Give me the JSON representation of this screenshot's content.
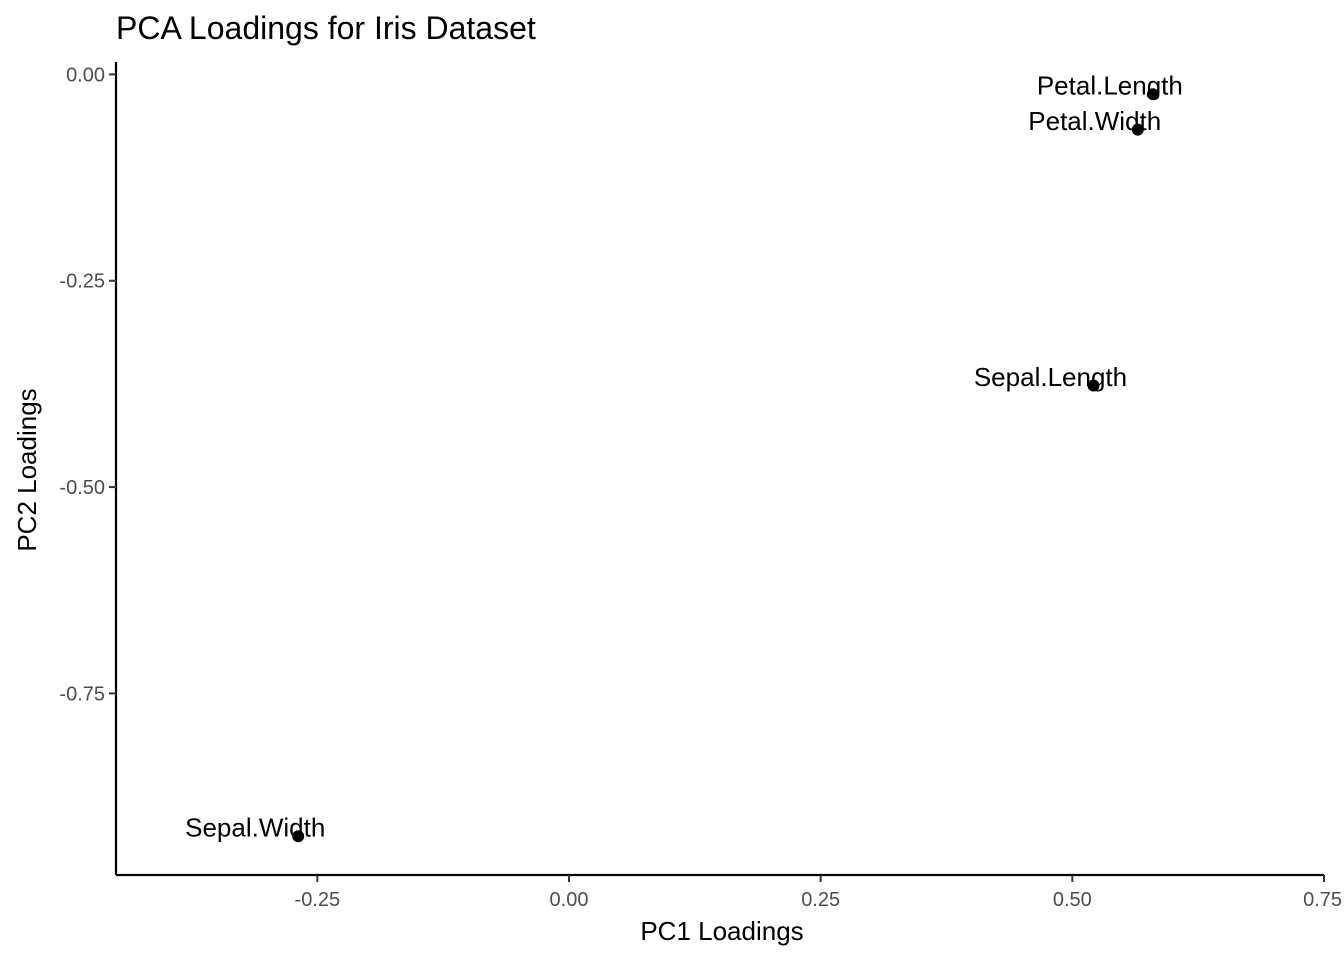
{
  "chart_data": {
    "type": "scatter",
    "title": "PCA Loadings for Iris Dataset",
    "xlabel": "PC1 Loadings",
    "ylabel": "PC2 Loadings",
    "xlim": [
      -0.45,
      0.75
    ],
    "ylim": [
      -0.97,
      0.015
    ],
    "xticks": [
      -0.25,
      0.0,
      0.25,
      0.5,
      0.75
    ],
    "xtick_labels": [
      "-0.25",
      "0.00",
      "0.25",
      "0.50",
      "0.75"
    ],
    "yticks": [
      0.0,
      -0.25,
      -0.5,
      -0.75
    ],
    "ytick_labels": [
      "0.00",
      "-0.25",
      "-0.50",
      "-0.75"
    ],
    "grid": false,
    "legend": "none",
    "point_color": "#000000",
    "points": [
      {
        "label": "Sepal.Length",
        "x": 0.521,
        "y": -0.377
      },
      {
        "label": "Sepal.Width",
        "x": -0.269,
        "y": -0.923
      },
      {
        "label": "Petal.Length",
        "x": 0.58,
        "y": -0.024
      },
      {
        "label": "Petal.Width",
        "x": 0.565,
        "y": -0.067
      }
    ]
  }
}
